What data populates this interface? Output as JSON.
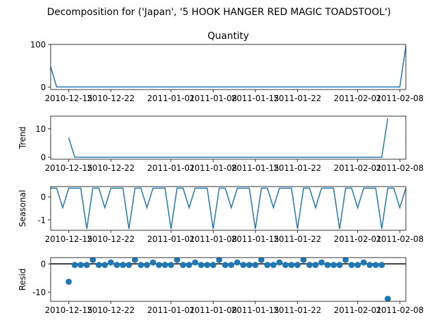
{
  "figure": {
    "suptitle": "Decomposition for ('Japan', '5 HOOK HANGER RED MAGIC TOADSTOOL')"
  },
  "chart_data": [
    {
      "type": "line",
      "title": "Quantity",
      "ylabel": "",
      "x_start": "2010-12-12",
      "dates": [
        "2010-12-12",
        "2010-12-13",
        "2010-12-14",
        "2010-12-15",
        "2010-12-16",
        "2010-12-17",
        "2010-12-18",
        "2010-12-19",
        "2010-12-20",
        "2010-12-21",
        "2010-12-22",
        "2010-12-23",
        "2010-12-24",
        "2010-12-25",
        "2010-12-26",
        "2010-12-27",
        "2010-12-28",
        "2010-12-29",
        "2010-12-30",
        "2010-12-31",
        "2011-01-01",
        "2011-01-02",
        "2011-01-03",
        "2011-01-04",
        "2011-01-05",
        "2011-01-06",
        "2011-01-07",
        "2011-01-08",
        "2011-01-09",
        "2011-01-10",
        "2011-01-11",
        "2011-01-12",
        "2011-01-13",
        "2011-01-14",
        "2011-01-15",
        "2011-01-16",
        "2011-01-17",
        "2011-01-18",
        "2011-01-19",
        "2011-01-20",
        "2011-01-21",
        "2011-01-22",
        "2011-01-23",
        "2011-01-24",
        "2011-01-25",
        "2011-01-26",
        "2011-01-27",
        "2011-01-28",
        "2011-01-29",
        "2011-01-30",
        "2011-01-31",
        "2011-02-01",
        "2011-02-02",
        "2011-02-03",
        "2011-02-04",
        "2011-02-05",
        "2011-02-06",
        "2011-02-07",
        "2011-02-08",
        "2011-02-09"
      ],
      "values": [
        48,
        0,
        0,
        0,
        0,
        0,
        0,
        0,
        0,
        0,
        0,
        0,
        0,
        0,
        0,
        0,
        0,
        0,
        0,
        0,
        0,
        0,
        0,
        0,
        0,
        0,
        0,
        0,
        0,
        0,
        0,
        0,
        0,
        0,
        0,
        0,
        0,
        0,
        0,
        0,
        0,
        0,
        0,
        0,
        0,
        0,
        0,
        0,
        0,
        0,
        0,
        0,
        0,
        0,
        0,
        0,
        0,
        0,
        0,
        96
      ],
      "yticks": [
        0,
        100
      ],
      "ylim": [
        -6,
        100
      ]
    },
    {
      "type": "line",
      "title": "",
      "ylabel": "Trend",
      "dates": [
        "2010-12-15",
        "2010-12-16",
        "2011-02-05",
        "2011-02-06"
      ],
      "values": [
        6.9,
        0,
        0,
        13.7
      ],
      "yticks": [
        0,
        10
      ],
      "ylim": [
        -0.7,
        14.5
      ]
    },
    {
      "type": "line",
      "title": "",
      "ylabel": "Seasonal",
      "period_pattern": [
        0.38,
        0.38,
        -0.47,
        0.38,
        0.38,
        0.38,
        -1.39
      ],
      "yticks": [
        -1,
        0
      ],
      "ylim": [
        -1.45,
        0.45
      ]
    },
    {
      "type": "scatter",
      "title": "",
      "ylabel": "Resid",
      "dates": [
        "2010-12-15",
        "2010-12-16",
        "2010-12-17",
        "2010-12-18",
        "2010-12-19",
        "2010-12-20",
        "2010-12-21",
        "2010-12-22",
        "2010-12-23",
        "2010-12-24",
        "2010-12-25",
        "2010-12-26",
        "2010-12-27",
        "2010-12-28",
        "2010-12-29",
        "2010-12-30",
        "2010-12-31",
        "2011-01-01",
        "2011-01-02",
        "2011-01-03",
        "2011-01-04",
        "2011-01-05",
        "2011-01-06",
        "2011-01-07",
        "2011-01-08",
        "2011-01-09",
        "2011-01-10",
        "2011-01-11",
        "2011-01-12",
        "2011-01-13",
        "2011-01-14",
        "2011-01-15",
        "2011-01-16",
        "2011-01-17",
        "2011-01-18",
        "2011-01-19",
        "2011-01-20",
        "2011-01-21",
        "2011-01-22",
        "2011-01-23",
        "2011-01-24",
        "2011-01-25",
        "2011-01-26",
        "2011-01-27",
        "2011-01-28",
        "2011-01-29",
        "2011-01-30",
        "2011-01-31",
        "2011-02-01",
        "2011-02-02",
        "2011-02-03",
        "2011-02-04",
        "2011-02-05",
        "2011-02-06"
      ],
      "values": [
        -6.3,
        -0.4,
        -0.4,
        -0.4,
        1.4,
        -0.4,
        -0.4,
        0.5,
        -0.4,
        -0.4,
        -0.4,
        1.4,
        -0.4,
        -0.4,
        0.5,
        -0.4,
        -0.4,
        -0.4,
        1.4,
        -0.4,
        -0.4,
        0.5,
        -0.4,
        -0.4,
        -0.4,
        1.4,
        -0.4,
        -0.4,
        0.5,
        -0.4,
        -0.4,
        -0.4,
        1.4,
        -0.4,
        -0.4,
        0.5,
        -0.4,
        -0.4,
        -0.4,
        1.4,
        -0.4,
        -0.4,
        0.5,
        -0.4,
        -0.4,
        -0.4,
        1.4,
        -0.4,
        -0.4,
        0.5,
        -0.4,
        -0.4,
        -0.4,
        -12.3
      ],
      "zero_line": true,
      "yticks": [
        -10,
        0
      ],
      "ylim": [
        -13.2,
        2.2
      ]
    }
  ],
  "x_axis": {
    "range": [
      "2010-12-12",
      "2011-02-09"
    ],
    "ticks": [
      "2010-12-15",
      "2010-12-22",
      "2011-01-01",
      "2011-01-08",
      "2011-01-15",
      "2011-01-22",
      "2011-02-01",
      "2011-02-08"
    ]
  },
  "colors": {
    "line": "#1f77b4",
    "marker": "#1f77b4",
    "zero": "#000000"
  }
}
